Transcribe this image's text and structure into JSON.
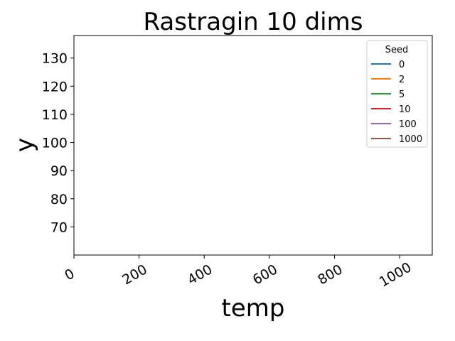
{
  "chart_data": {
    "type": "line",
    "title": "Rastragin 10 dims",
    "xlabel": "temp",
    "ylabel": "y",
    "xlim": [
      0,
      1100
    ],
    "ylim": [
      60,
      138
    ],
    "x_ticks": [
      0,
      200,
      400,
      600,
      800,
      1000
    ],
    "y_ticks": [
      70,
      80,
      90,
      100,
      110,
      120,
      130
    ],
    "grid": false,
    "legend": {
      "title": "Seed",
      "placement": "top-right"
    },
    "series": [
      {
        "name": "0",
        "color": "#1f77b4",
        "x": [],
        "y": []
      },
      {
        "name": "2",
        "color": "#ff7f0e",
        "x": [],
        "y": []
      },
      {
        "name": "5",
        "color": "#2ca02c",
        "x": [],
        "y": []
      },
      {
        "name": "10",
        "color": "#d62728",
        "x": [],
        "y": []
      },
      {
        "name": "100",
        "color": "#9467bd",
        "x": [],
        "y": []
      },
      {
        "name": "1000",
        "color": "#8c564b",
        "x": [],
        "y": []
      }
    ]
  }
}
